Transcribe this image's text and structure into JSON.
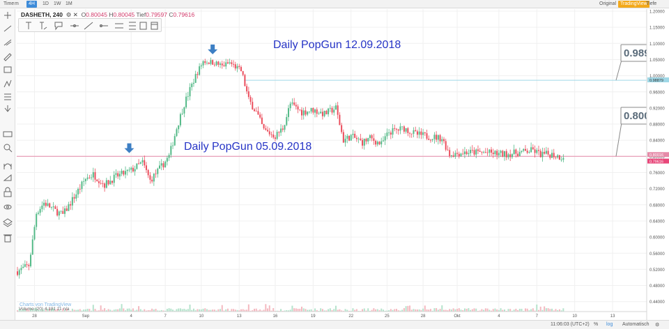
{
  "toolbar": {
    "time_label": "Time",
    "minute_label": "m",
    "interval_4h": "4H",
    "interval_1d": "1D",
    "interval_1w": "1W",
    "interval_1m": "1M",
    "original_label": "Original",
    "brand_label": "TradingView",
    "depth_label": "Tiefe"
  },
  "legend": {
    "symbol": "DASHETH, 240",
    "open_label": "O",
    "open": "0.80045",
    "high_label": "H",
    "high": "0.80045",
    "low_label": "Tief",
    "low": "0.79597",
    "close_label": "C",
    "close": "0.79616"
  },
  "annotations": {
    "popgun_top": "Daily PopGun 12.09.2018",
    "popgun_bottom": "Daily PopGun 05.09.2018",
    "callout_top": "0.989",
    "callout_bottom": "0.800"
  },
  "watermark": "Charts von TradingView",
  "volume_label": "Volume (20) 4.181 11 n/a",
  "bottombar": {
    "time": "11:06:03 (UTC+2)",
    "percent": "%",
    "log": "log",
    "auto": "Automatisch"
  },
  "colors": {
    "up": "#53b987",
    "down": "#eb4d5c",
    "arrow": "#3d7fc4",
    "annotation": "#2634c6",
    "level_top": "#9fd7e6",
    "level_bottom": "#e58aa8"
  },
  "chart_data": {
    "type": "candlestick",
    "symbol": "DASHETH",
    "interval": "240",
    "ylim": [
      0.4,
      1.2
    ],
    "y_ticks": [
      "1.20000",
      "1.15000",
      "1.10000",
      "1.05000",
      "1.00000",
      "0.96000",
      "0.92000",
      "0.88000",
      "0.84000",
      "0.80000",
      "0.76000",
      "0.72000",
      "0.68000",
      "0.64000",
      "0.60000",
      "0.56000",
      "0.52000",
      "0.48000",
      "0.44000"
    ],
    "y_tick_values": [
      1.2,
      1.15,
      1.1,
      1.05,
      1.0,
      0.96,
      0.92,
      0.88,
      0.84,
      0.8,
      0.76,
      0.72,
      0.68,
      0.64,
      0.6,
      0.56,
      0.52,
      0.48,
      0.44
    ],
    "x_ticks": [
      "28",
      "Sep",
      "4",
      "7",
      "10",
      "13",
      "16",
      "19",
      "22",
      "25",
      "28",
      "Okt",
      "4",
      "7",
      "10",
      "13"
    ],
    "price_labels": [
      {
        "text": "0.98879",
        "value": 0.98879,
        "color": "#9fd7e6"
      },
      {
        "text": "0.80016",
        "value": 0.80016,
        "color": "#e58aa8"
      },
      {
        "text": "0.79616",
        "value": 0.79616,
        "color": "#e8477a"
      }
    ],
    "level_lines": [
      0.98879,
      0.80016
    ],
    "path": [
      {
        "bar": 0,
        "v": 0.515
      },
      {
        "bar": 6,
        "v": 0.53
      },
      {
        "bar": 8,
        "v": 0.59
      },
      {
        "bar": 10,
        "v": 0.66
      },
      {
        "bar": 14,
        "v": 0.685
      },
      {
        "bar": 20,
        "v": 0.665
      },
      {
        "bar": 24,
        "v": 0.655
      },
      {
        "bar": 30,
        "v": 0.7
      },
      {
        "bar": 36,
        "v": 0.745
      },
      {
        "bar": 40,
        "v": 0.755
      },
      {
        "bar": 46,
        "v": 0.73
      },
      {
        "bar": 52,
        "v": 0.75
      },
      {
        "bar": 60,
        "v": 0.765
      },
      {
        "bar": 66,
        "v": 0.785
      },
      {
        "bar": 70,
        "v": 0.74
      },
      {
        "bar": 76,
        "v": 0.775
      },
      {
        "bar": 80,
        "v": 0.8
      },
      {
        "bar": 84,
        "v": 0.87
      },
      {
        "bar": 88,
        "v": 0.93
      },
      {
        "bar": 94,
        "v": 1.0
      },
      {
        "bar": 98,
        "v": 1.045
      },
      {
        "bar": 104,
        "v": 1.04
      },
      {
        "bar": 108,
        "v": 1.03
      },
      {
        "bar": 112,
        "v": 1.04
      },
      {
        "bar": 118,
        "v": 1.015
      },
      {
        "bar": 122,
        "v": 0.94
      },
      {
        "bar": 126,
        "v": 0.91
      },
      {
        "bar": 130,
        "v": 0.865
      },
      {
        "bar": 136,
        "v": 0.85
      },
      {
        "bar": 140,
        "v": 0.87
      },
      {
        "bar": 144,
        "v": 0.93
      },
      {
        "bar": 150,
        "v": 0.91
      },
      {
        "bar": 156,
        "v": 0.915
      },
      {
        "bar": 162,
        "v": 0.905
      },
      {
        "bar": 168,
        "v": 0.92
      },
      {
        "bar": 172,
        "v": 0.84
      },
      {
        "bar": 176,
        "v": 0.85
      },
      {
        "bar": 182,
        "v": 0.835
      },
      {
        "bar": 186,
        "v": 0.845
      },
      {
        "bar": 192,
        "v": 0.83
      },
      {
        "bar": 196,
        "v": 0.86
      },
      {
        "bar": 204,
        "v": 0.87
      },
      {
        "bar": 210,
        "v": 0.855
      },
      {
        "bar": 216,
        "v": 0.85
      },
      {
        "bar": 224,
        "v": 0.845
      },
      {
        "bar": 228,
        "v": 0.805
      },
      {
        "bar": 236,
        "v": 0.81
      },
      {
        "bar": 246,
        "v": 0.81
      },
      {
        "bar": 256,
        "v": 0.805
      },
      {
        "bar": 266,
        "v": 0.81
      },
      {
        "bar": 272,
        "v": 0.815
      },
      {
        "bar": 276,
        "v": 0.805
      },
      {
        "bar": 282,
        "v": 0.805
      },
      {
        "bar": 288,
        "v": 0.796
      }
    ],
    "arrows": [
      {
        "bar": 59,
        "v": 0.815,
        "direction": "down"
      },
      {
        "bar": 103,
        "v": 1.075,
        "direction": "down"
      }
    ]
  }
}
